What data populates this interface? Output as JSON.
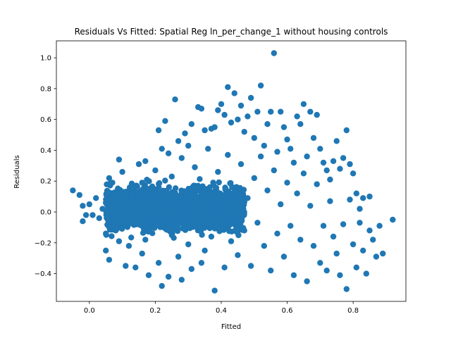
{
  "chart_data": {
    "type": "scatter",
    "title": "Residuals Vs Fitted: Spatial Reg ln_per_change_1 without housing controls",
    "xlabel": "Fitted",
    "ylabel": "Residuals",
    "xlim": [
      -0.1,
      0.96
    ],
    "ylim": [
      -0.58,
      1.11
    ],
    "xticks": [
      0.0,
      0.2,
      0.4,
      0.6,
      0.8
    ],
    "xtick_labels": [
      "0.0",
      "0.2",
      "0.4",
      "0.6",
      "0.8"
    ],
    "yticks": [
      -0.4,
      -0.2,
      0.0,
      0.2,
      0.4,
      0.6,
      0.8,
      1.0
    ],
    "ytick_labels": [
      "−0.4",
      "−0.2",
      "0.0",
      "0.2",
      "0.4",
      "0.6",
      "0.8",
      "1.0"
    ],
    "grid": false,
    "marker_color": "#1f77b4",
    "series": [
      {
        "name": "",
        "points": [
          [
            -0.05,
            0.14
          ],
          [
            -0.03,
            0.11
          ],
          [
            -0.02,
            0.04
          ],
          [
            -0.01,
            -0.02
          ],
          [
            -0.02,
            -0.06
          ],
          [
            0.0,
            0.05
          ],
          [
            0.01,
            -0.02
          ],
          [
            0.02,
            0.09
          ],
          [
            0.03,
            -0.04
          ],
          [
            0.04,
            0.02
          ],
          [
            0.05,
            -0.14
          ],
          [
            0.05,
            -0.25
          ],
          [
            0.06,
            -0.31
          ],
          [
            0.06,
            0.22
          ],
          [
            0.07,
            0.19
          ],
          [
            0.08,
            0.04
          ],
          [
            0.08,
            -0.12
          ],
          [
            0.09,
            -0.19
          ],
          [
            0.09,
            0.34
          ],
          [
            0.1,
            0.26
          ],
          [
            0.1,
            -0.07
          ],
          [
            0.11,
            -0.35
          ],
          [
            0.11,
            0.12
          ],
          [
            0.12,
            -0.22
          ],
          [
            0.13,
            0.07
          ],
          [
            0.14,
            -0.36
          ],
          [
            0.15,
            0.31
          ],
          [
            0.15,
            -0.03
          ],
          [
            0.16,
            0.19
          ],
          [
            0.16,
            -0.27
          ],
          [
            0.17,
            0.33
          ],
          [
            0.17,
            -0.18
          ],
          [
            0.18,
            -0.41
          ],
          [
            0.19,
            0.15
          ],
          [
            0.2,
            0.27
          ],
          [
            0.2,
            -0.08
          ],
          [
            0.21,
            0.53
          ],
          [
            0.21,
            -0.33
          ],
          [
            0.22,
            0.41
          ],
          [
            0.22,
            -0.48
          ],
          [
            0.23,
            0.59
          ],
          [
            0.23,
            0.01
          ],
          [
            0.24,
            0.38
          ],
          [
            0.24,
            -0.42
          ],
          [
            0.25,
            0.23
          ],
          [
            0.25,
            -0.15
          ],
          [
            0.26,
            0.73
          ],
          [
            0.26,
            0.11
          ],
          [
            0.27,
            0.46
          ],
          [
            0.27,
            -0.29
          ],
          [
            0.28,
            0.35
          ],
          [
            0.28,
            -0.44
          ],
          [
            0.29,
            0.51
          ],
          [
            0.29,
            0.05
          ],
          [
            0.3,
            0.43
          ],
          [
            0.3,
            -0.21
          ],
          [
            0.31,
            0.57
          ],
          [
            0.31,
            -0.37
          ],
          [
            0.32,
            0.29
          ],
          [
            0.32,
            -0.09
          ],
          [
            0.33,
            0.68
          ],
          [
            0.33,
            0.17
          ],
          [
            0.34,
            0.67
          ],
          [
            0.34,
            -0.33
          ],
          [
            0.35,
            0.53
          ],
          [
            0.35,
            -0.25
          ],
          [
            0.36,
            0.41
          ],
          [
            0.36,
            0.02
          ],
          [
            0.37,
            0.54
          ],
          [
            0.37,
            -0.16
          ],
          [
            0.38,
            0.55
          ],
          [
            0.38,
            -0.51
          ],
          [
            0.39,
            0.66
          ],
          [
            0.39,
            0.26
          ],
          [
            0.4,
            0.7
          ],
          [
            0.4,
            -0.03
          ],
          [
            0.41,
            0.63
          ],
          [
            0.41,
            -0.36
          ],
          [
            0.42,
            0.81
          ],
          [
            0.42,
            0.37
          ],
          [
            0.43,
            0.58
          ],
          [
            0.43,
            -0.19
          ],
          [
            0.44,
            0.77
          ],
          [
            0.44,
            0.13
          ],
          [
            0.45,
            0.6
          ],
          [
            0.45,
            -0.28
          ],
          [
            0.46,
            0.69
          ],
          [
            0.46,
            0.31
          ],
          [
            0.47,
            0.52
          ],
          [
            0.47,
            -0.12
          ],
          [
            0.48,
            0.62
          ],
          [
            0.48,
            0.09
          ],
          [
            0.49,
            0.74
          ],
          [
            0.49,
            -0.35
          ],
          [
            0.5,
            0.48
          ],
          [
            0.5,
            0.22
          ],
          [
            0.51,
            0.65
          ],
          [
            0.51,
            -0.07
          ],
          [
            0.52,
            0.82
          ],
          [
            0.52,
            0.36
          ],
          [
            0.53,
            0.43
          ],
          [
            0.53,
            -0.22
          ],
          [
            0.54,
            0.57
          ],
          [
            0.54,
            0.14
          ],
          [
            0.55,
            0.65
          ],
          [
            0.55,
            -0.38
          ],
          [
            0.56,
            1.03
          ],
          [
            0.56,
            0.27
          ],
          [
            0.57,
            0.39
          ],
          [
            0.57,
            -0.14
          ],
          [
            0.58,
            0.65
          ],
          [
            0.58,
            0.05
          ],
          [
            0.59,
            0.55
          ],
          [
            0.59,
            -0.29
          ],
          [
            0.6,
            0.47
          ],
          [
            0.6,
            0.19
          ],
          [
            0.61,
            0.41
          ],
          [
            0.61,
            -0.09
          ],
          [
            0.62,
            0.32
          ],
          [
            0.62,
            -0.41
          ],
          [
            0.63,
            0.62
          ],
          [
            0.63,
            0.12
          ],
          [
            0.64,
            0.57
          ],
          [
            0.64,
            -0.18
          ],
          [
            0.65,
            0.7
          ],
          [
            0.65,
            0.25
          ],
          [
            0.66,
            0.36
          ],
          [
            0.66,
            -0.45
          ],
          [
            0.67,
            0.65
          ],
          [
            0.67,
            0.04
          ],
          [
            0.68,
            0.48
          ],
          [
            0.68,
            -0.22
          ],
          [
            0.69,
            0.63
          ],
          [
            0.69,
            0.18
          ],
          [
            0.7,
            0.41
          ],
          [
            0.7,
            -0.33
          ],
          [
            0.71,
            0.32
          ],
          [
            0.71,
            -0.09
          ],
          [
            0.72,
            0.27
          ],
          [
            0.72,
            -0.38
          ],
          [
            0.73,
            0.21
          ],
          [
            0.73,
            0.07
          ],
          [
            0.74,
            0.33
          ],
          [
            0.74,
            -0.16
          ],
          [
            0.75,
            0.46
          ],
          [
            0.75,
            -0.27
          ],
          [
            0.76,
            0.28
          ],
          [
            0.76,
            -0.41
          ],
          [
            0.77,
            0.35
          ],
          [
            0.77,
            -0.08
          ],
          [
            0.78,
            0.53
          ],
          [
            0.78,
            -0.5
          ],
          [
            0.79,
            0.31
          ],
          [
            0.79,
            0.08
          ],
          [
            0.8,
            0.25
          ],
          [
            0.8,
            -0.21
          ],
          [
            0.81,
            0.12
          ],
          [
            0.81,
            -0.36
          ],
          [
            0.82,
            0.02
          ],
          [
            0.82,
            -0.07
          ],
          [
            0.83,
            0.09
          ],
          [
            0.83,
            -0.25
          ],
          [
            0.84,
            -0.4
          ],
          [
            0.85,
            0.1
          ],
          [
            0.85,
            -0.12
          ],
          [
            0.86,
            -0.18
          ],
          [
            0.87,
            -0.29
          ],
          [
            0.88,
            -0.09
          ],
          [
            0.89,
            -0.27
          ],
          [
            0.92,
            -0.05
          ]
        ]
      }
    ]
  }
}
